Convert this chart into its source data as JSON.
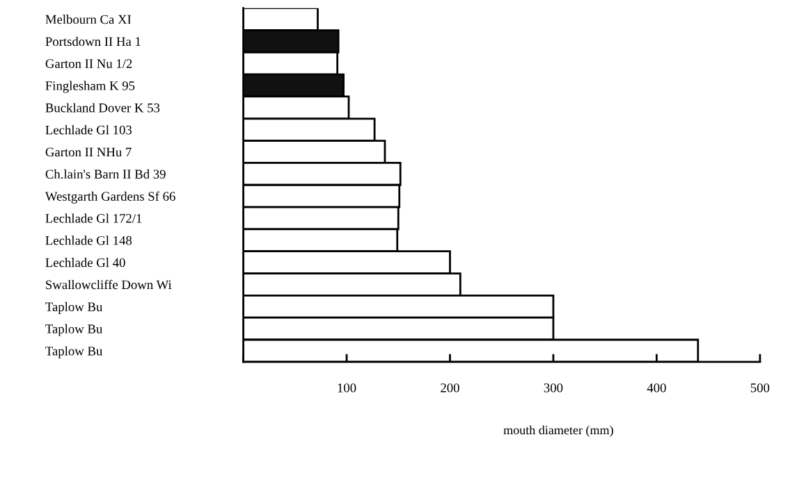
{
  "chart_data": {
    "type": "bar",
    "orientation": "horizontal",
    "xlabel": "mouth diameter (mm)",
    "categories": [
      "Melbourn Ca XI",
      "Portsdown II Ha 1",
      "Garton II Nu 1/2",
      "Finglesham K 95",
      "Buckland Dover K 53",
      "Lechlade Gl 103",
      "Garton II NHu 7",
      "Ch.lain's Barn II Bd 39",
      "Westgarth Gardens Sf 66",
      "Lechlade Gl 172/1",
      "Lechlade Gl 148",
      "Lechlade Gl 40",
      "Swallowcliffe Down Wi",
      "Taplow Bu",
      "Taplow Bu",
      "Taplow Bu"
    ],
    "values": [
      72,
      92,
      91,
      97,
      102,
      127,
      137,
      152,
      151,
      150,
      149,
      200,
      210,
      300,
      300,
      440
    ],
    "colors": [
      "#ffffff",
      "#111111",
      "#ffffff",
      "#111111",
      "#ffffff",
      "#ffffff",
      "#ffffff",
      "#ffffff",
      "#ffffff",
      "#ffffff",
      "#ffffff",
      "#ffffff",
      "#ffffff",
      "#ffffff",
      "#ffffff",
      "#ffffff"
    ],
    "xlim": [
      0,
      500
    ],
    "xticks": [
      {
        "value": 0,
        "label": null
      },
      100,
      200,
      300,
      400,
      500
    ],
    "grid": false,
    "legend": false
  }
}
